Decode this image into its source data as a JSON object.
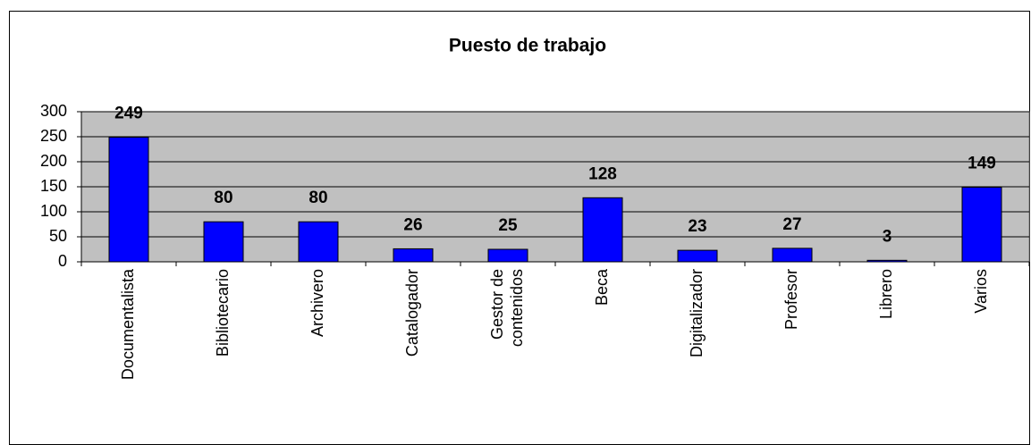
{
  "chart_data": {
    "type": "bar",
    "title": "Puesto de trabajo",
    "categories": [
      "Documentalista",
      "Bibliotecario",
      "Archivero",
      "Catalogador",
      "Gestor de\ncontenidos",
      "Beca",
      "Digitalizador",
      "Profesor",
      "Librero",
      "Varios"
    ],
    "values": [
      249,
      80,
      80,
      26,
      25,
      128,
      23,
      27,
      3,
      149
    ],
    "color": "#0000ff",
    "background": "#c0c0c0",
    "ylim": [
      0,
      300
    ],
    "yticks": [
      0,
      50,
      100,
      150,
      200,
      250,
      300
    ],
    "grid": true
  }
}
